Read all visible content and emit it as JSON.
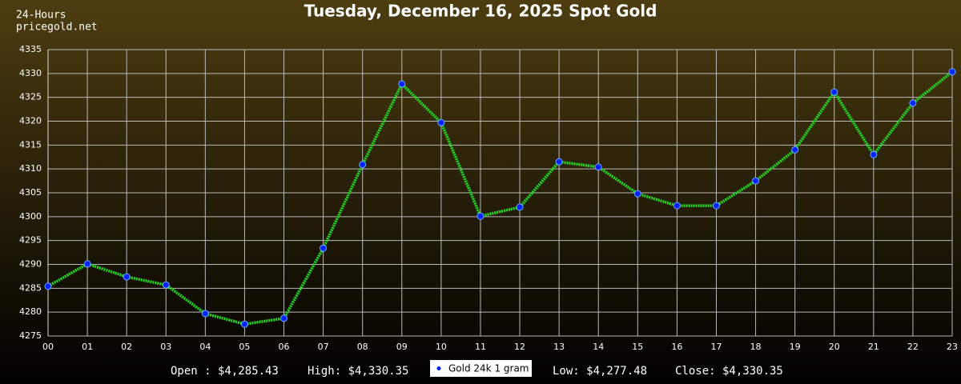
{
  "chart_data": {
    "type": "line",
    "title": "Tuesday, December 16, 2025 Spot Gold",
    "corner_labels": [
      "24-Hours",
      "pricegold.net"
    ],
    "categories": [
      "00",
      "01",
      "02",
      "03",
      "04",
      "05",
      "06",
      "07",
      "08",
      "09",
      "10",
      "11",
      "12",
      "13",
      "14",
      "15",
      "16",
      "17",
      "18",
      "19",
      "20",
      "21",
      "22",
      "23"
    ],
    "series": [
      {
        "name": "Gold 24k 1 gram",
        "color": "#22dd22",
        "marker_color": "#0022ff",
        "values": [
          4285.43,
          4290.1,
          4287.4,
          4285.7,
          4279.7,
          4277.48,
          4278.7,
          4293.4,
          4310.9,
          4327.8,
          4319.7,
          4300.1,
          4302.0,
          4311.5,
          4310.4,
          4304.8,
          4302.3,
          4302.3,
          4307.5,
          4314.0,
          4326.1,
          4313.0,
          4323.8,
          4330.35
        ]
      }
    ],
    "ylim": [
      4275,
      4335
    ],
    "yticks": [
      4275,
      4280,
      4285,
      4290,
      4295,
      4300,
      4305,
      4310,
      4315,
      4320,
      4325,
      4330,
      4335
    ],
    "grid": true,
    "stats_left": [
      "Open : $4,285.43",
      "High: $4,330.35"
    ],
    "stats_right": [
      "Low: $4,277.48",
      "Close: $4,330.35"
    ]
  }
}
